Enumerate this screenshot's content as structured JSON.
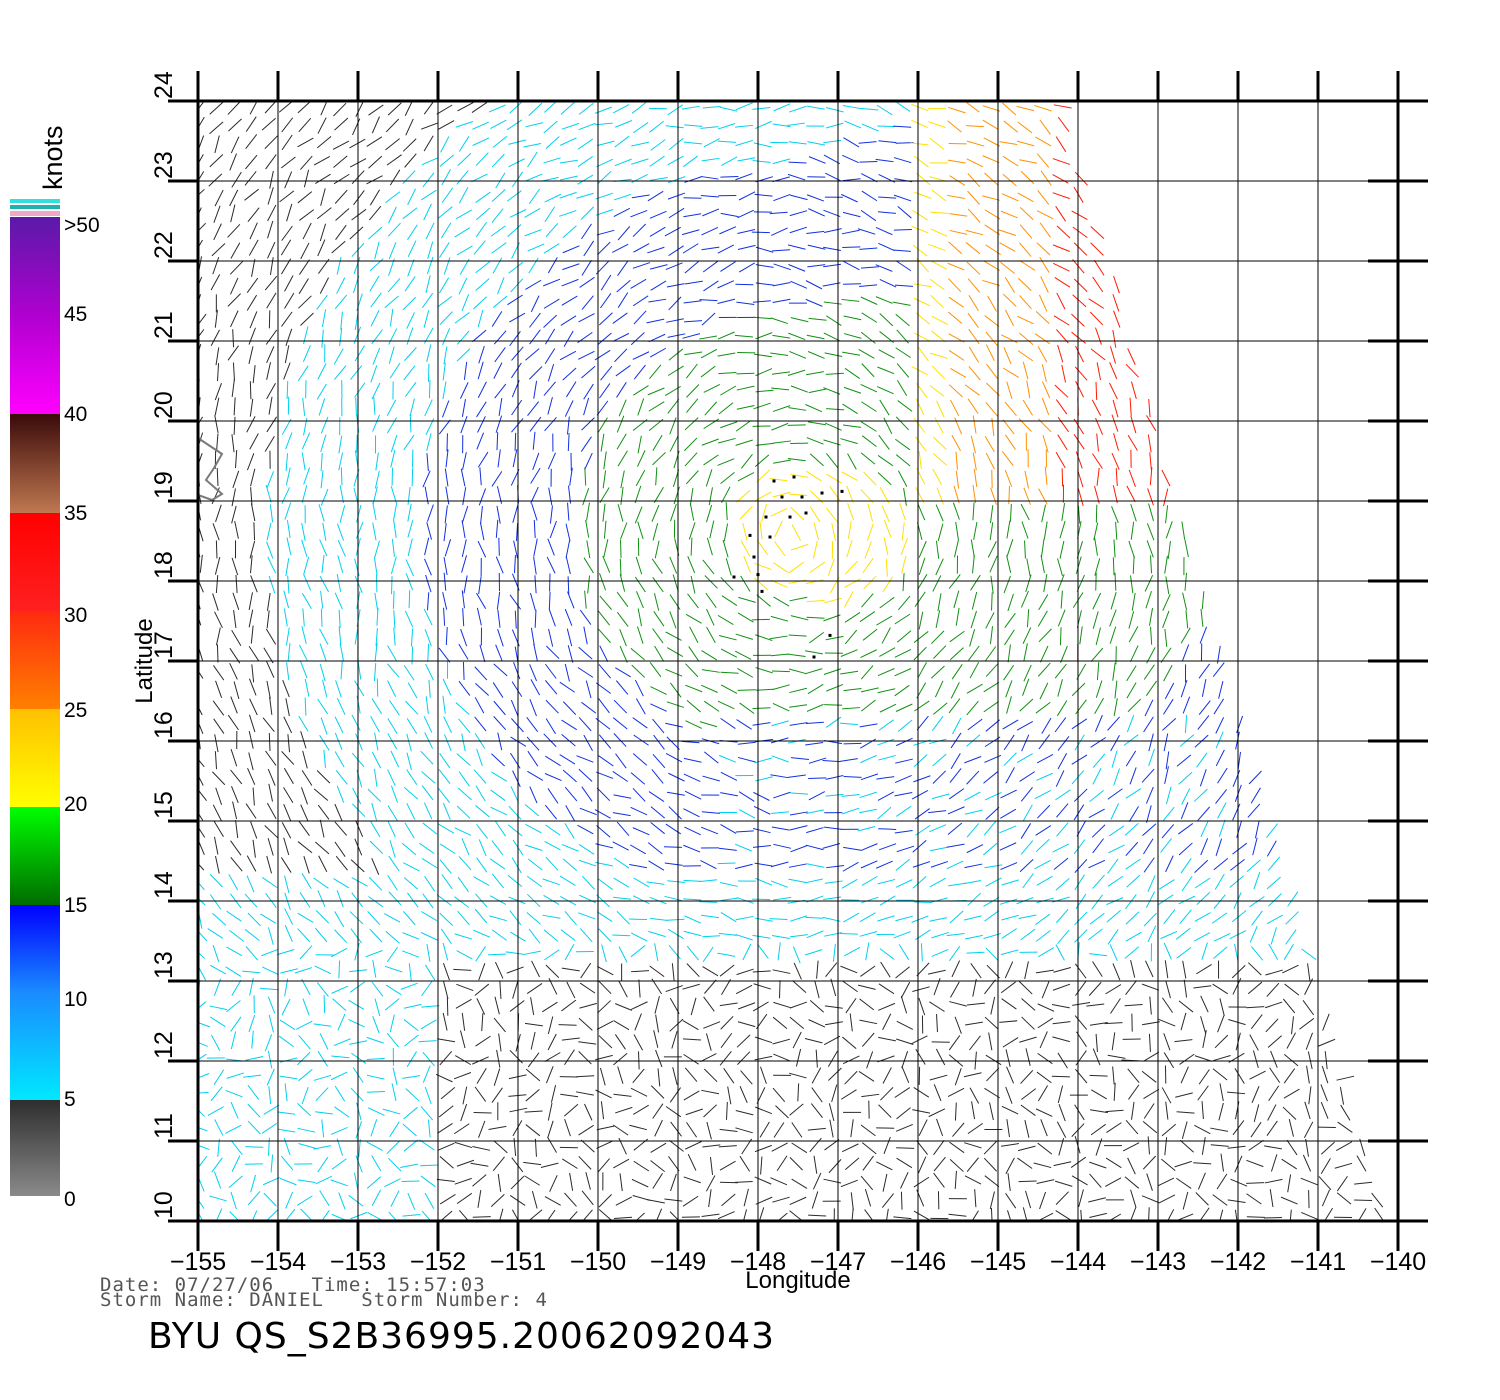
{
  "chart_data": {
    "type": "vector-field",
    "xlabel": "Longitude",
    "ylabel": "Latitude",
    "xlim": [
      -155,
      -140
    ],
    "ylim": [
      10,
      24
    ],
    "x_ticks": [
      "−155",
      "−154",
      "−153",
      "−152",
      "−151",
      "−150",
      "−149",
      "−148",
      "−147",
      "−146",
      "−145",
      "−144",
      "−143",
      "−142",
      "−141",
      "−140"
    ],
    "y_ticks": [
      "10",
      "11",
      "12",
      "13",
      "14",
      "15",
      "16",
      "17",
      "18",
      "19",
      "20",
      "21",
      "22",
      "23",
      "24"
    ],
    "grid": true,
    "colorbar": {
      "title": "knots",
      "labels": [
        ">50",
        "45",
        "40",
        "35",
        "30",
        "25",
        "20",
        "15",
        "10",
        "5",
        "0"
      ]
    },
    "storm_center": {
      "lon": -147.6,
      "lat": 18.6
    }
  },
  "footer": {
    "date_label": "Date:",
    "date": "07/27/06",
    "time_label": "Time:",
    "time": "15:57:03",
    "storm_name_label": "Storm Name:",
    "storm_name": "DANIEL",
    "storm_number_label": "Storm Number:",
    "storm_number": "4",
    "product_id": "BYU QS_S2B36995.20062092043"
  }
}
